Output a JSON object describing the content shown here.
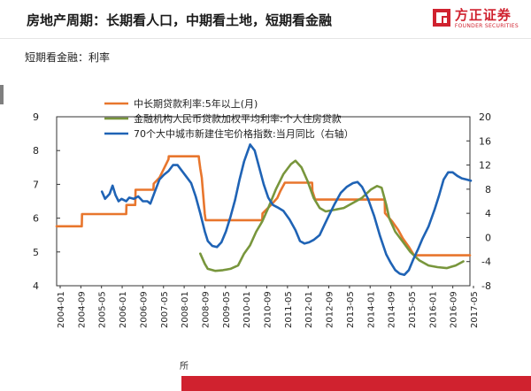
{
  "header": {
    "title": "房地产周期：长期看人口，中期看土地，短期看金融",
    "subtitle": "短期看金融：利率",
    "brand_name": "方正证券",
    "brand_en": "FOUNDER SECURITIES",
    "brand_color": "#d0222f"
  },
  "footer": {
    "source_fragment": "所"
  },
  "chart_data": {
    "type": "line",
    "title": "",
    "xlabel": "",
    "ylabel_left": "",
    "ylabel_right": "",
    "ylim_left": [
      4,
      9
    ],
    "ylim_right": [
      -8,
      20
    ],
    "yticks_left": [
      "4",
      "5",
      "6",
      "7",
      "8",
      "9"
    ],
    "yticks_right": [
      "-8",
      "-4",
      "0",
      "4",
      "8",
      "12",
      "16",
      "20"
    ],
    "xtick_labels": [
      "2004-01",
      "2004-09",
      "2005-05",
      "2006-01",
      "2006-09",
      "2007-05",
      "2008-01",
      "2008-09",
      "2009-05",
      "2010-01",
      "2010-09",
      "2011-05",
      "2012-01",
      "2012-09",
      "2013-05",
      "2014-01",
      "2014-09",
      "2015-05",
      "2016-01",
      "2016-09",
      "2017-05"
    ],
    "grid": false,
    "legend_position": "top",
    "series": [
      {
        "name": "中长期贷款利率:5年以上(月)",
        "axis": "left",
        "color": "#e8762d",
        "points": [
          [
            2004.0,
            5.76
          ],
          [
            2004.83,
            5.76
          ],
          [
            2004.84,
            6.12
          ],
          [
            2006.3,
            6.12
          ],
          [
            2006.31,
            6.39
          ],
          [
            2006.6,
            6.39
          ],
          [
            2006.61,
            6.84
          ],
          [
            2007.2,
            6.84
          ],
          [
            2007.21,
            7.02
          ],
          [
            2007.4,
            7.2
          ],
          [
            2007.5,
            7.38
          ],
          [
            2007.6,
            7.56
          ],
          [
            2007.7,
            7.74
          ],
          [
            2007.71,
            7.83
          ],
          [
            2008.7,
            7.83
          ],
          [
            2008.71,
            7.74
          ],
          [
            2008.75,
            7.47
          ],
          [
            2008.8,
            7.2
          ],
          [
            2008.85,
            6.66
          ],
          [
            2008.9,
            6.12
          ],
          [
            2008.93,
            5.94
          ],
          [
            2010.8,
            5.94
          ],
          [
            2010.81,
            6.14
          ],
          [
            2011.1,
            6.4
          ],
          [
            2011.3,
            6.6
          ],
          [
            2011.4,
            6.8
          ],
          [
            2011.55,
            7.05
          ],
          [
            2012.45,
            7.05
          ],
          [
            2012.46,
            6.8
          ],
          [
            2012.55,
            6.55
          ],
          [
            2014.85,
            6.55
          ],
          [
            2014.86,
            6.15
          ],
          [
            2015.1,
            5.9
          ],
          [
            2015.3,
            5.65
          ],
          [
            2015.45,
            5.4
          ],
          [
            2015.65,
            5.15
          ],
          [
            2015.82,
            4.9
          ],
          [
            2017.67,
            4.9
          ]
        ]
      },
      {
        "name": "金融机构人民币贷款加权平均利率:个人住房贷款",
        "axis": "left",
        "color": "#78963c",
        "points": [
          [
            2008.75,
            4.95
          ],
          [
            2008.9,
            4.65
          ],
          [
            2009.0,
            4.5
          ],
          [
            2009.25,
            4.44
          ],
          [
            2009.5,
            4.46
          ],
          [
            2009.75,
            4.5
          ],
          [
            2010.0,
            4.6
          ],
          [
            2010.2,
            4.95
          ],
          [
            2010.4,
            5.2
          ],
          [
            2010.6,
            5.6
          ],
          [
            2010.8,
            5.9
          ],
          [
            2011.0,
            6.3
          ],
          [
            2011.25,
            6.85
          ],
          [
            2011.5,
            7.3
          ],
          [
            2011.75,
            7.6
          ],
          [
            2011.9,
            7.7
          ],
          [
            2012.1,
            7.5
          ],
          [
            2012.3,
            7.1
          ],
          [
            2012.5,
            6.6
          ],
          [
            2012.7,
            6.3
          ],
          [
            2012.9,
            6.2
          ],
          [
            2013.2,
            6.25
          ],
          [
            2013.5,
            6.3
          ],
          [
            2013.8,
            6.45
          ],
          [
            2014.1,
            6.6
          ],
          [
            2014.4,
            6.85
          ],
          [
            2014.6,
            6.95
          ],
          [
            2014.75,
            6.9
          ],
          [
            2014.9,
            6.4
          ],
          [
            2015.0,
            6.0
          ],
          [
            2015.2,
            5.6
          ],
          [
            2015.45,
            5.3
          ],
          [
            2015.7,
            5.0
          ],
          [
            2016.0,
            4.75
          ],
          [
            2016.3,
            4.6
          ],
          [
            2016.6,
            4.55
          ],
          [
            2016.9,
            4.52
          ],
          [
            2017.2,
            4.6
          ],
          [
            2017.45,
            4.72
          ]
        ]
      },
      {
        "name": "70个大中城市新建住宅价格指数:当月同比（右轴）",
        "axis": "right",
        "color": "#1f63b5",
        "points": [
          [
            2005.5,
            7.6
          ],
          [
            2005.6,
            6.4
          ],
          [
            2005.75,
            7.2
          ],
          [
            2005.85,
            8.6
          ],
          [
            2005.95,
            7.0
          ],
          [
            2006.05,
            6.0
          ],
          [
            2006.15,
            6.4
          ],
          [
            2006.3,
            6.0
          ],
          [
            2006.4,
            6.6
          ],
          [
            2006.55,
            6.4
          ],
          [
            2006.7,
            6.8
          ],
          [
            2006.85,
            6.0
          ],
          [
            2007.0,
            6.0
          ],
          [
            2007.1,
            5.6
          ],
          [
            2007.25,
            7.6
          ],
          [
            2007.4,
            9.6
          ],
          [
            2007.55,
            10.4
          ],
          [
            2007.7,
            11.0
          ],
          [
            2007.85,
            12.0
          ],
          [
            2008.0,
            12.0
          ],
          [
            2008.15,
            11.0
          ],
          [
            2008.3,
            10.0
          ],
          [
            2008.45,
            9.0
          ],
          [
            2008.6,
            6.8
          ],
          [
            2008.75,
            4.0
          ],
          [
            2008.9,
            1.0
          ],
          [
            2009.0,
            -0.6
          ],
          [
            2009.15,
            -1.4
          ],
          [
            2009.3,
            -1.6
          ],
          [
            2009.45,
            -0.8
          ],
          [
            2009.6,
            1.0
          ],
          [
            2009.75,
            3.4
          ],
          [
            2009.9,
            6.2
          ],
          [
            2010.05,
            9.6
          ],
          [
            2010.2,
            12.6
          ],
          [
            2010.3,
            14.0
          ],
          [
            2010.4,
            15.4
          ],
          [
            2010.55,
            14.4
          ],
          [
            2010.7,
            11.6
          ],
          [
            2010.85,
            8.8
          ],
          [
            2011.0,
            6.6
          ],
          [
            2011.15,
            5.4
          ],
          [
            2011.3,
            5.0
          ],
          [
            2011.5,
            4.4
          ],
          [
            2011.7,
            3.0
          ],
          [
            2011.9,
            1.2
          ],
          [
            2012.05,
            -0.6
          ],
          [
            2012.2,
            -1.0
          ],
          [
            2012.35,
            -0.8
          ],
          [
            2012.5,
            -0.4
          ],
          [
            2012.7,
            0.4
          ],
          [
            2012.85,
            2.0
          ],
          [
            2013.0,
            3.6
          ],
          [
            2013.2,
            5.6
          ],
          [
            2013.4,
            7.4
          ],
          [
            2013.6,
            8.4
          ],
          [
            2013.8,
            9.0
          ],
          [
            2013.95,
            9.2
          ],
          [
            2014.1,
            8.4
          ],
          [
            2014.3,
            6.4
          ],
          [
            2014.5,
            3.6
          ],
          [
            2014.7,
            0.2
          ],
          [
            2014.9,
            -2.8
          ],
          [
            2015.05,
            -4.2
          ],
          [
            2015.2,
            -5.4
          ],
          [
            2015.35,
            -6.0
          ],
          [
            2015.5,
            -6.2
          ],
          [
            2015.65,
            -5.4
          ],
          [
            2015.8,
            -3.6
          ],
          [
            2015.95,
            -2.0
          ],
          [
            2016.1,
            -0.2
          ],
          [
            2016.3,
            1.8
          ],
          [
            2016.5,
            4.6
          ],
          [
            2016.65,
            7.0
          ],
          [
            2016.8,
            9.6
          ],
          [
            2016.95,
            10.8
          ],
          [
            2017.1,
            10.8
          ],
          [
            2017.25,
            10.2
          ],
          [
            2017.4,
            9.8
          ],
          [
            2017.55,
            9.6
          ],
          [
            2017.7,
            9.4
          ]
        ]
      }
    ]
  }
}
